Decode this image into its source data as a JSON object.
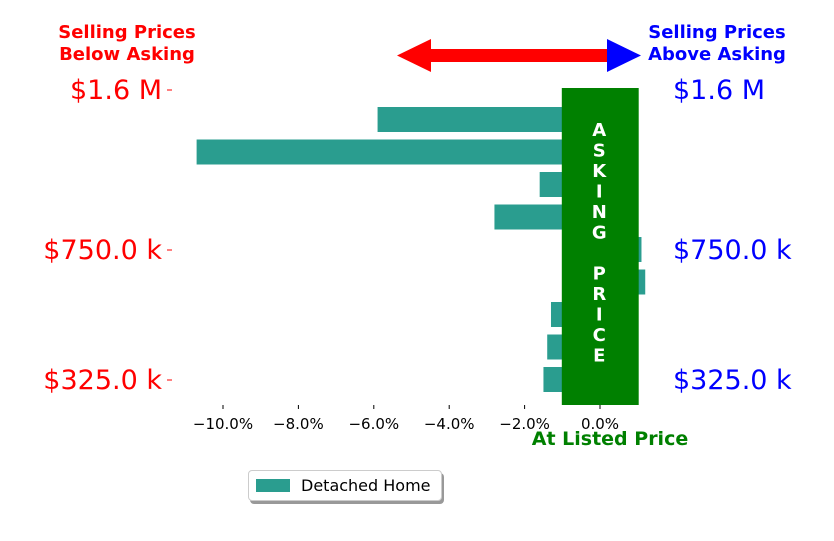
{
  "colors": {
    "bar": "#2a9d8f",
    "below": "#ff0000",
    "above": "#0000ff",
    "asking": "#008000",
    "axis": "#000000"
  },
  "header": {
    "below_title": [
      "Selling Prices",
      "Below Asking"
    ],
    "above_title": [
      "Selling Prices",
      "Above Asking"
    ]
  },
  "asking_band": {
    "letters": [
      "A",
      "S",
      "K",
      "I",
      "N",
      "G",
      "",
      "P",
      "R",
      "I",
      "C",
      "E"
    ],
    "x_label": "At Listed Price"
  },
  "chart_data": {
    "type": "bar",
    "orientation": "horizontal",
    "title": "",
    "xlabel": "At Listed Price",
    "ylabel": "",
    "xlim": [
      -11.2,
      0.4
    ],
    "x_ticks": [
      -10,
      -8,
      -6,
      -4,
      -2,
      0
    ],
    "x_tick_labels": [
      "−10.0%",
      "−8.0%",
      "−6.0%",
      "−4.0%",
      "−2.0%",
      "0.0%"
    ],
    "y_tick_labels_left": [
      "$1.6 M",
      "$750.0 k",
      "$325.0 k"
    ],
    "y_tick_labels_right": [
      "$1.6 M",
      "$750.0 k",
      "$325.0 k"
    ],
    "y_tick_rows": [
      0,
      5,
      9
    ],
    "asking_band_x": [
      -1.0,
      1.0
    ],
    "series": [
      {
        "name": "Detached Home",
        "values": [
          -5.9,
          -10.7,
          -1.6,
          -2.8,
          1.1,
          1.2,
          -1.3,
          -1.4,
          -1.5
        ]
      }
    ],
    "legend": {
      "entries": [
        "Detached Home"
      ],
      "placement": "bottom-center"
    },
    "grid": false
  }
}
